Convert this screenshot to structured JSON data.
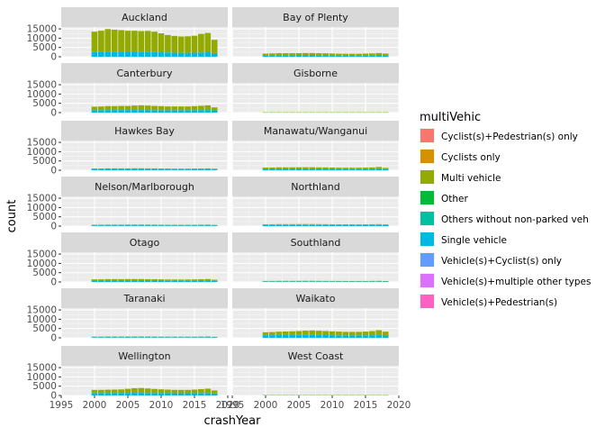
{
  "chart_data": {
    "type": "bar",
    "stacked": true,
    "faceted": true,
    "xlabel": "crashYear",
    "ylabel": "count",
    "xlim": [
      1995,
      2020
    ],
    "ylim": [
      0,
      16000
    ],
    "x_ticks": [
      1995,
      2000,
      2005,
      2010,
      2015,
      2020
    ],
    "y_ticks": [
      0,
      5000,
      10000,
      15000
    ],
    "years": [
      2000,
      2001,
      2002,
      2003,
      2004,
      2005,
      2006,
      2007,
      2008,
      2009,
      2010,
      2011,
      2012,
      2013,
      2014,
      2015,
      2016,
      2017,
      2018
    ],
    "legend_title": "multiVehic",
    "legend_position": "right",
    "legend": [
      {
        "name": "Cyclist(s)+Pedestrian(s) only",
        "color": "#F8766D"
      },
      {
        "name": "Cyclists only",
        "color": "#D39200"
      },
      {
        "name": "Multi vehicle",
        "color": "#93AA00"
      },
      {
        "name": "Other",
        "color": "#00BA38"
      },
      {
        "name": "Others without non-parked veh",
        "color": "#00C19F"
      },
      {
        "name": "Single vehicle",
        "color": "#00B9E3"
      },
      {
        "name": "Vehicle(s)+Cyclist(s) only",
        "color": "#619CFF"
      },
      {
        "name": "Vehicle(s)+multiple other types",
        "color": "#DB72FB"
      },
      {
        "name": "Vehicle(s)+Pedestrian(s)",
        "color": "#FF61C3"
      }
    ],
    "stack_order": [
      "Single vehicle",
      "Multi vehicle"
    ],
    "panels": [
      {
        "name": "Auckland",
        "single": [
          2500,
          2500,
          2600,
          2600,
          2700,
          2700,
          2700,
          2600,
          2600,
          2500,
          2400,
          2300,
          2200,
          2100,
          2100,
          2200,
          2300,
          2400,
          2000
        ],
        "multi": [
          11000,
          11500,
          12300,
          12000,
          11600,
          11300,
          11300,
          11200,
          11300,
          11000,
          10200,
          9400,
          9000,
          8800,
          8900,
          9100,
          10000,
          10400,
          7100
        ]
      },
      {
        "name": "Bay of Plenty",
        "single": [
          800,
          850,
          900,
          900,
          900,
          950,
          950,
          950,
          900,
          900,
          850,
          800,
          800,
          800,
          800,
          850,
          900,
          950,
          800
        ],
        "multi": [
          900,
          950,
          1000,
          1000,
          1000,
          1000,
          1050,
          1050,
          1000,
          950,
          900,
          850,
          800,
          800,
          800,
          850,
          900,
          1050,
          900
        ]
      },
      {
        "name": "Canterbury",
        "single": [
          1300,
          1300,
          1400,
          1400,
          1400,
          1400,
          1400,
          1400,
          1400,
          1300,
          1300,
          1300,
          1300,
          1300,
          1300,
          1300,
          1400,
          1400,
          1200
        ],
        "multi": [
          1900,
          2000,
          2100,
          2100,
          2200,
          2200,
          2400,
          2500,
          2400,
          2300,
          2200,
          2000,
          2000,
          2000,
          2000,
          2200,
          2300,
          2500,
          1600
        ]
      },
      {
        "name": "Gisborne",
        "single": [
          80,
          80,
          90,
          90,
          90,
          90,
          90,
          90,
          80,
          80,
          80,
          80,
          80,
          80,
          80,
          80,
          90,
          90,
          80
        ],
        "multi": [
          80,
          80,
          90,
          90,
          90,
          90,
          90,
          90,
          80,
          80,
          80,
          80,
          80,
          80,
          80,
          80,
          90,
          90,
          80
        ]
      },
      {
        "name": "Hawkes Bay",
        "single": [
          450,
          450,
          480,
          480,
          480,
          480,
          480,
          480,
          470,
          460,
          450,
          440,
          430,
          430,
          430,
          440,
          450,
          470,
          400
        ],
        "multi": [
          500,
          500,
          550,
          550,
          550,
          550,
          600,
          600,
          550,
          550,
          500,
          500,
          450,
          450,
          450,
          500,
          500,
          550,
          450
        ]
      },
      {
        "name": "Manawatu/Wanganui",
        "single": [
          700,
          700,
          750,
          750,
          750,
          750,
          750,
          750,
          720,
          700,
          700,
          680,
          670,
          660,
          660,
          680,
          700,
          750,
          600
        ],
        "multi": [
          750,
          750,
          800,
          800,
          800,
          850,
          850,
          850,
          800,
          800,
          750,
          700,
          700,
          700,
          700,
          750,
          800,
          1000,
          700
        ]
      },
      {
        "name": "Nelson/Marlborough",
        "single": [
          400,
          400,
          420,
          420,
          420,
          430,
          430,
          430,
          420,
          410,
          400,
          390,
          380,
          380,
          380,
          390,
          400,
          420,
          350
        ],
        "multi": [
          350,
          350,
          380,
          380,
          380,
          400,
          400,
          400,
          380,
          370,
          350,
          340,
          330,
          330,
          330,
          340,
          360,
          380,
          300
        ]
      },
      {
        "name": "Northland",
        "single": [
          550,
          550,
          580,
          580,
          580,
          600,
          600,
          600,
          580,
          570,
          550,
          530,
          520,
          520,
          520,
          530,
          550,
          580,
          500
        ],
        "multi": [
          450,
          450,
          480,
          480,
          480,
          500,
          500,
          500,
          480,
          470,
          450,
          430,
          420,
          420,
          420,
          430,
          450,
          480,
          400
        ]
      },
      {
        "name": "Otago",
        "single": [
          700,
          700,
          750,
          750,
          750,
          750,
          750,
          750,
          720,
          700,
          700,
          680,
          670,
          660,
          660,
          680,
          700,
          750,
          600
        ],
        "multi": [
          700,
          700,
          750,
          750,
          750,
          800,
          800,
          800,
          750,
          750,
          700,
          650,
          650,
          650,
          650,
          700,
          750,
          800,
          600
        ]
      },
      {
        "name": "Southland",
        "single": [
          300,
          300,
          320,
          320,
          320,
          330,
          330,
          330,
          320,
          310,
          300,
          290,
          280,
          280,
          280,
          290,
          300,
          320,
          260
        ],
        "multi": [
          250,
          250,
          270,
          270,
          270,
          280,
          280,
          280,
          270,
          260,
          250,
          240,
          230,
          230,
          230,
          240,
          250,
          270,
          220
        ]
      },
      {
        "name": "Taranaki",
        "single": [
          350,
          350,
          370,
          370,
          370,
          380,
          380,
          380,
          370,
          360,
          350,
          340,
          330,
          330,
          330,
          340,
          350,
          370,
          300
        ],
        "multi": [
          300,
          300,
          320,
          320,
          320,
          330,
          330,
          330,
          320,
          310,
          300,
          290,
          280,
          280,
          280,
          290,
          300,
          320,
          260
        ]
      },
      {
        "name": "Waikato",
        "single": [
          1400,
          1400,
          1500,
          1500,
          1500,
          1550,
          1550,
          1550,
          1500,
          1450,
          1400,
          1350,
          1300,
          1300,
          1300,
          1350,
          1400,
          1500,
          1200
        ],
        "multi": [
          1600,
          1700,
          1800,
          1900,
          2000,
          2100,
          2300,
          2400,
          2300,
          2200,
          2100,
          2000,
          1900,
          1900,
          1900,
          2000,
          2200,
          2600,
          2100
        ]
      },
      {
        "name": "Wellington",
        "single": [
          1300,
          1300,
          1350,
          1350,
          1350,
          1400,
          1400,
          1400,
          1350,
          1300,
          1300,
          1250,
          1200,
          1200,
          1200,
          1250,
          1300,
          1350,
          1100
        ],
        "multi": [
          1700,
          1700,
          1750,
          1800,
          1900,
          2200,
          2500,
          2600,
          2400,
          2200,
          2000,
          1900,
          1800,
          1800,
          1800,
          1900,
          2100,
          2300,
          1600
        ]
      },
      {
        "name": "West Coast",
        "single": [
          120,
          120,
          130,
          130,
          130,
          130,
          130,
          130,
          125,
          120,
          120,
          115,
          110,
          110,
          110,
          115,
          120,
          130,
          100
        ],
        "multi": [
          90,
          90,
          100,
          100,
          100,
          100,
          100,
          100,
          95,
          90,
          90,
          85,
          80,
          80,
          80,
          85,
          90,
          100,
          80
        ]
      }
    ]
  }
}
